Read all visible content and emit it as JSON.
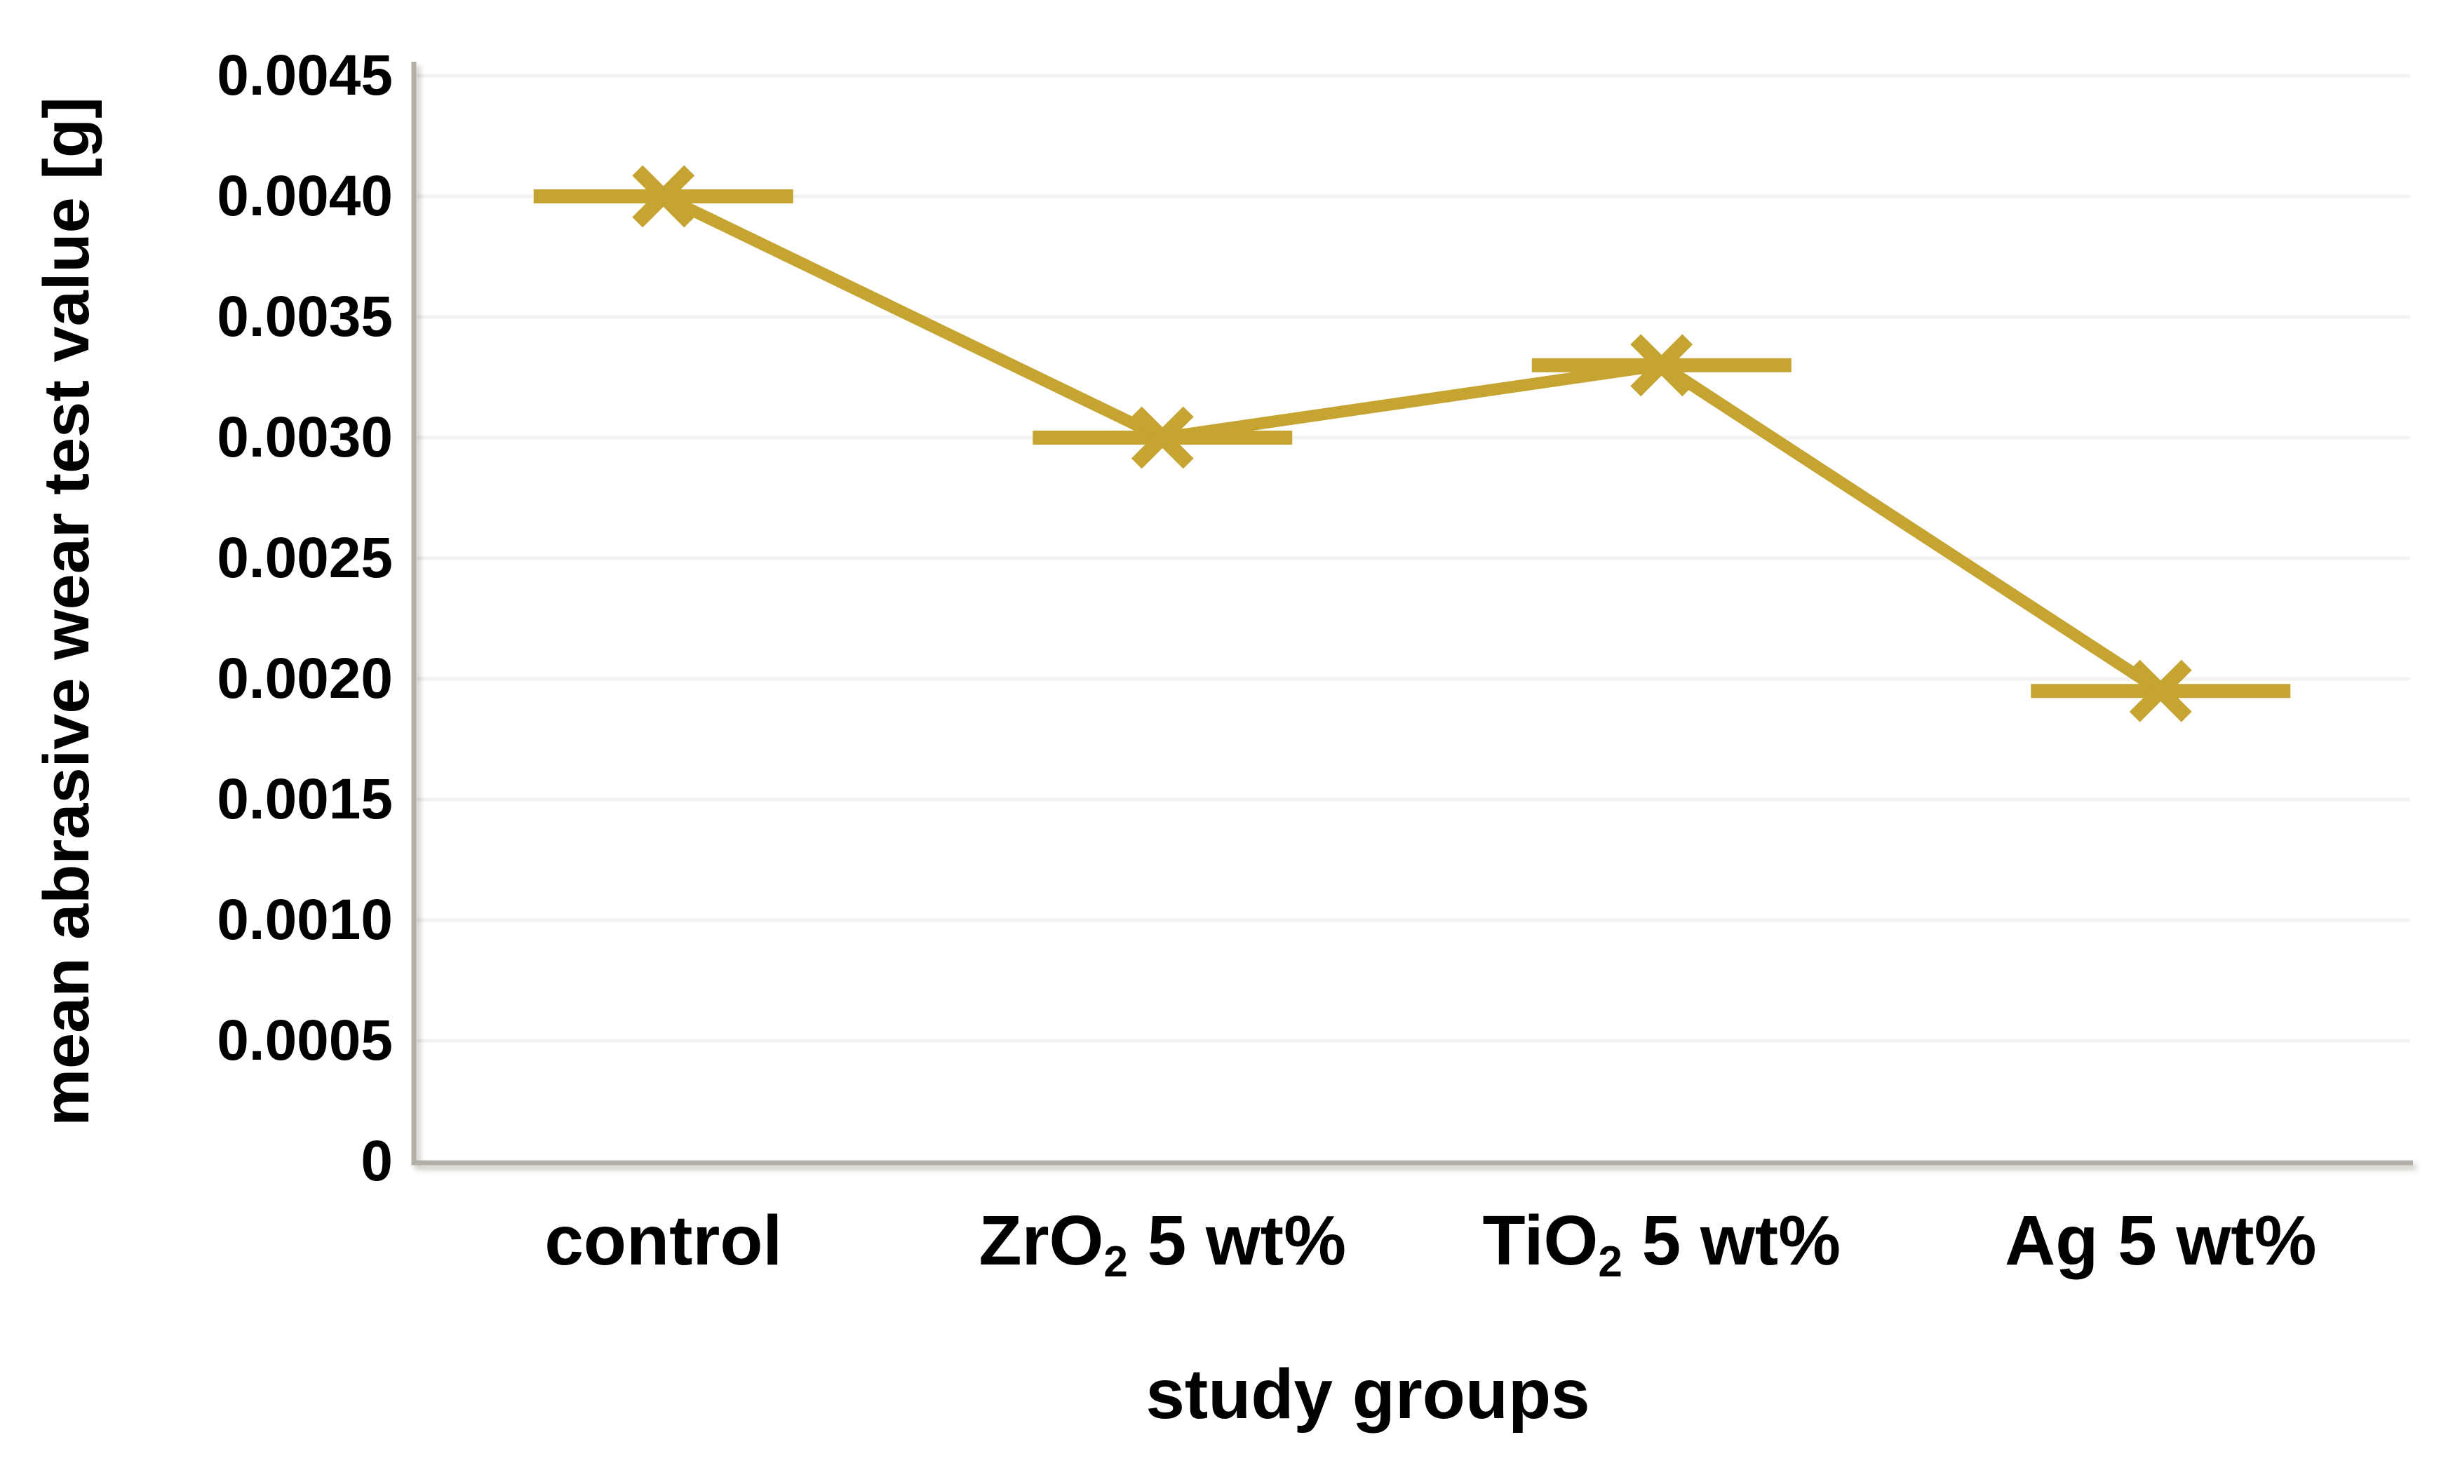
{
  "figure": {
    "background_color": "#FFFFFF",
    "series_color": "#C5A432",
    "grid_color": "#F3F2F0",
    "axis_color": "#B5AFA8",
    "text_color": "#000000"
  },
  "chart_data": {
    "type": "line",
    "title": "",
    "xlabel": "study groups",
    "ylabel": "mean abrasive wear test value [g]",
    "categories": [
      "control",
      "ZrO2 5 wt%",
      "TiO2 5 wt%",
      "Ag 5 wt%"
    ],
    "categories_rich": [
      {
        "pre": "control",
        "sub": "",
        "post": ""
      },
      {
        "pre": "ZrO",
        "sub": "2",
        "post": " 5 wt%"
      },
      {
        "pre": "TiO",
        "sub": "2",
        "post": " 5 wt%"
      },
      {
        "pre": "Ag",
        "sub": "",
        "post": " 5 wt%"
      }
    ],
    "values": [
      0.004,
      0.003,
      0.0033,
      0.00195
    ],
    "series": [
      {
        "name": "mean abrasive wear",
        "values": [
          0.004,
          0.003,
          0.0033,
          0.00195
        ]
      }
    ],
    "y_ticks": [
      "0.0045",
      "0.0040",
      "0.0035",
      "0.0030",
      "0.0025",
      "0.0020",
      "0.0015",
      "0.0010",
      "0.0005",
      "0"
    ],
    "y_tick_values": [
      0.0045,
      0.004,
      0.0035,
      0.003,
      0.0025,
      0.002,
      0.0015,
      0.001,
      0.0005,
      0
    ],
    "ylim": [
      0,
      0.0045
    ],
    "grid": "horizontal",
    "legend": "none",
    "marker": "x-with-horizontal-dash"
  }
}
